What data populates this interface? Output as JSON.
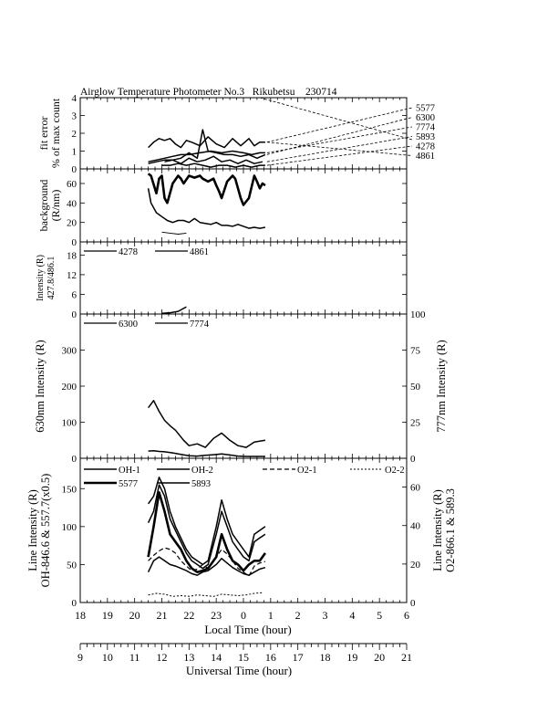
{
  "page": {
    "title": "Airglow Temperature Photometer No.3   Rikubetsu    230714"
  },
  "colors": {
    "ink": "#000000",
    "background": "#ffffff"
  },
  "chart_data": [
    {
      "id": "fit_error",
      "type": "line",
      "ylabel_lines": [
        "fit error",
        "% of max count"
      ],
      "ylim": [
        0,
        4
      ],
      "yticks": [
        0,
        1,
        2,
        3,
        4
      ],
      "xlim": [
        9,
        21
      ],
      "legend_right": [
        "5577",
        "6300",
        "7774",
        "5893",
        "4278",
        "4861"
      ],
      "series": [
        {
          "name": "5577",
          "style": "solid",
          "x": [
            11.5,
            11.7,
            11.9,
            12.1,
            12.3,
            12.5,
            12.7,
            12.9,
            13.1,
            13.4,
            13.7,
            14.0,
            14.3,
            14.6,
            14.9,
            15.2,
            15.4,
            15.6,
            15.8
          ],
          "y": [
            1.2,
            1.5,
            1.7,
            1.6,
            1.7,
            1.4,
            1.2,
            1.6,
            1.5,
            1.3,
            1.8,
            1.4,
            1.2,
            1.7,
            1.3,
            1.7,
            1.3,
            1.5,
            1.5
          ]
        },
        {
          "name": "6300",
          "style": "solid",
          "x": [
            11.5,
            11.8,
            12.1,
            12.4,
            12.7,
            13.0,
            13.3,
            13.5,
            13.7,
            14.0,
            14.3,
            14.6,
            14.9,
            15.2,
            15.5,
            15.8
          ],
          "y": [
            0.3,
            0.4,
            0.5,
            0.5,
            0.6,
            0.9,
            0.6,
            2.2,
            1.0,
            0.9,
            0.8,
            0.8,
            0.7,
            0.8,
            0.6,
            0.8
          ]
        },
        {
          "name": "7774",
          "style": "solid",
          "x": [
            11.5,
            11.8,
            12.1,
            12.4,
            12.7,
            13.0,
            13.4,
            13.8,
            14.2,
            14.6,
            15.0,
            15.3,
            15.6,
            15.8
          ],
          "y": [
            0.4,
            0.5,
            0.6,
            0.7,
            0.8,
            0.8,
            0.9,
            1.0,
            0.9,
            1.0,
            0.9,
            0.8,
            0.9,
            0.9
          ]
        },
        {
          "name": "5893",
          "style": "solid",
          "x": [
            12.1,
            12.4,
            12.7,
            13.0,
            13.3,
            13.6,
            13.9,
            14.2,
            14.5,
            14.8,
            15.1,
            15.4,
            15.7
          ],
          "y": [
            0.4,
            0.5,
            0.3,
            0.6,
            0.4,
            0.5,
            0.7,
            0.4,
            0.5,
            0.3,
            0.5,
            0.3,
            0.4
          ]
        },
        {
          "name": "4278",
          "style": "solid",
          "x": [
            12.0,
            12.3,
            12.6,
            12.9,
            13.2,
            13.5,
            13.8,
            14.1,
            14.4,
            14.7,
            15.0,
            15.3,
            15.6,
            15.8
          ],
          "y": [
            0.2,
            0.2,
            0.3,
            0.2,
            0.3,
            0.2,
            0.1,
            0.2,
            0.2,
            0.1,
            0.2,
            0.1,
            0.2,
            0.2
          ]
        }
      ]
    },
    {
      "id": "background",
      "type": "line",
      "ylabel_lines": [
        "background",
        "(R/nm)"
      ],
      "ylim": [
        0,
        75
      ],
      "yticks": [
        0,
        20,
        40,
        60
      ],
      "xlim": [
        9,
        21
      ],
      "series": [
        {
          "name": "upper",
          "style": "solid-bold",
          "x": [
            11.5,
            11.6,
            11.8,
            11.9,
            12.0,
            12.1,
            12.2,
            12.4,
            12.6,
            12.7,
            12.8,
            13.0,
            13.2,
            13.4,
            13.5,
            13.7,
            13.9,
            14.0,
            14.1,
            14.2,
            14.4,
            14.6,
            14.7,
            14.8,
            14.9,
            15.0,
            15.2,
            15.4,
            15.5,
            15.6,
            15.7,
            15.8
          ],
          "y": [
            70,
            68,
            50,
            65,
            68,
            45,
            40,
            60,
            68,
            65,
            60,
            68,
            66,
            68,
            65,
            62,
            65,
            58,
            52,
            45,
            62,
            68,
            65,
            55,
            45,
            38,
            45,
            68,
            62,
            55,
            60,
            58
          ]
        },
        {
          "name": "lower",
          "style": "solid",
          "x": [
            11.5,
            11.6,
            11.8,
            12.0,
            12.2,
            12.4,
            12.6,
            12.8,
            13.0,
            13.2,
            13.4,
            13.6,
            13.8,
            14.0,
            14.2,
            14.4,
            14.6,
            14.8,
            15.0,
            15.2,
            15.4,
            15.6,
            15.8
          ],
          "y": [
            55,
            40,
            30,
            26,
            22,
            20,
            22,
            22,
            20,
            24,
            20,
            19,
            18,
            20,
            17,
            17,
            16,
            18,
            16,
            14,
            15,
            14,
            15
          ]
        },
        {
          "name": "bottom",
          "style": "solid-thin",
          "x": [
            12.0,
            12.3,
            12.6,
            12.9
          ],
          "y": [
            10,
            9,
            8,
            9
          ]
        }
      ]
    },
    {
      "id": "intensity_4278_4861",
      "type": "line",
      "ylabel_lines": [
        "Intensity (R)",
        "427.8/486.1"
      ],
      "ylim": [
        0,
        22
      ],
      "yticks": [
        0,
        6,
        12,
        18
      ],
      "xlim": [
        9,
        21
      ],
      "legend": [
        "4278",
        "4861"
      ],
      "series": [
        {
          "name": "4278",
          "style": "solid",
          "x": [
            12.0,
            12.3,
            12.6,
            12.9
          ],
          "y": [
            0.2,
            0.4,
            0.8,
            2.2
          ]
        }
      ]
    },
    {
      "id": "intensity_630_777",
      "type": "line",
      "ylabel_left": "630nm Intensity (R)",
      "ylabel_right": "777nm Intensity (R)",
      "ylim": [
        0,
        400
      ],
      "yticks": [
        0,
        100,
        200,
        300
      ],
      "ylim_right": [
        0,
        100
      ],
      "yticks_right": [
        0,
        25,
        50,
        75,
        100
      ],
      "xlim": [
        9,
        21
      ],
      "legend": [
        "6300",
        "7774"
      ],
      "series": [
        {
          "name": "6300",
          "style": "solid",
          "x": [
            11.5,
            11.7,
            11.9,
            12.1,
            12.3,
            12.5,
            12.8,
            13.0,
            13.3,
            13.6,
            13.9,
            14.2,
            14.5,
            14.8,
            15.1,
            15.4,
            15.8
          ],
          "y": [
            140,
            160,
            130,
            105,
            90,
            78,
            50,
            35,
            40,
            30,
            55,
            70,
            50,
            35,
            30,
            45,
            50
          ]
        },
        {
          "name": "7774",
          "style": "solid",
          "x": [
            11.5,
            11.7,
            11.9,
            12.1,
            12.4,
            12.7,
            13.0,
            13.3,
            13.6,
            13.9,
            14.2,
            14.5,
            14.8,
            15.1,
            15.4,
            15.8
          ],
          "y": [
            20,
            21,
            19,
            18,
            15,
            11,
            7,
            6,
            8,
            10,
            12,
            9,
            6,
            5,
            5,
            5
          ]
        }
      ]
    },
    {
      "id": "line_intensity",
      "type": "line",
      "ylabel_left_lines": [
        "Line Intensity (R)",
        "OH-846.6 & 557.7(x0.5)"
      ],
      "ylabel_right_lines": [
        "Line Intensity (R)",
        "O2-866.1 & 589.3"
      ],
      "ylim": [
        0,
        190
      ],
      "yticks": [
        0,
        50,
        100,
        150
      ],
      "ylim_right": [
        0,
        75
      ],
      "yticks_right": [
        0,
        20,
        40,
        60
      ],
      "xlim": [
        9,
        21
      ],
      "legend_row1": [
        "OH-1",
        "OH-2",
        "O2-1",
        "O2-2"
      ],
      "legend_row2": [
        "5577",
        "5893"
      ],
      "series": [
        {
          "name": "OH-1",
          "style": "solid",
          "x": [
            11.5,
            11.7,
            11.9,
            12.1,
            12.3,
            12.5,
            12.7,
            12.9,
            13.1,
            13.3,
            13.5,
            13.7,
            14.0,
            14.2,
            14.4,
            14.6,
            14.8,
            15.0,
            15.2,
            15.4,
            15.6,
            15.8
          ],
          "y": [
            130,
            140,
            165,
            150,
            120,
            100,
            85,
            70,
            60,
            55,
            50,
            55,
            100,
            135,
            110,
            90,
            80,
            70,
            60,
            90,
            95,
            100
          ]
        },
        {
          "name": "OH-2",
          "style": "solid",
          "x": [
            11.5,
            11.7,
            11.9,
            12.1,
            12.3,
            12.5,
            12.7,
            12.9,
            13.1,
            13.3,
            13.5,
            13.7,
            14.0,
            14.2,
            14.4,
            14.6,
            14.8,
            15.0,
            15.2,
            15.4,
            15.6,
            15.8
          ],
          "y": [
            105,
            120,
            155,
            140,
            110,
            95,
            80,
            65,
            55,
            50,
            45,
            50,
            90,
            120,
            100,
            80,
            70,
            60,
            55,
            80,
            85,
            90
          ]
        },
        {
          "name": "O2-1",
          "style": "dashed",
          "x": [
            11.5,
            11.7,
            11.9,
            12.1,
            12.3,
            12.5,
            12.7,
            12.9,
            13.1,
            13.3,
            13.5,
            13.7,
            14.0,
            14.2,
            14.4,
            14.6,
            14.8,
            15.0,
            15.2,
            15.4,
            15.6,
            15.8
          ],
          "y": [
            55,
            62,
            68,
            72,
            70,
            65,
            55,
            48,
            42,
            44,
            50,
            45,
            60,
            70,
            64,
            55,
            45,
            40,
            35,
            48,
            52,
            54
          ]
        },
        {
          "name": "O2-2",
          "style": "dotted",
          "x": [
            11.5,
            11.8,
            12.1,
            12.4,
            12.7,
            13.0,
            13.3,
            13.6,
            13.9,
            14.2,
            14.5,
            14.8,
            15.1,
            15.4,
            15.7
          ],
          "y": [
            10,
            12,
            11,
            8,
            9,
            8,
            10,
            9,
            8,
            11,
            10,
            9,
            10,
            12,
            13
          ]
        },
        {
          "name": "5577",
          "style": "solid-bold",
          "x": [
            11.5,
            11.7,
            11.9,
            12.1,
            12.3,
            12.5,
            12.7,
            12.9,
            13.1,
            13.3,
            13.5,
            13.7,
            14.0,
            14.2,
            14.4,
            14.6,
            14.8,
            15.0,
            15.2,
            15.4,
            15.6,
            15.8
          ],
          "y": [
            60,
            100,
            145,
            120,
            90,
            80,
            70,
            55,
            45,
            40,
            42,
            45,
            60,
            90,
            70,
            55,
            50,
            42,
            50,
            55,
            55,
            65
          ]
        },
        {
          "name": "5893",
          "style": "solid",
          "x": [
            11.5,
            11.7,
            11.9,
            12.1,
            12.3,
            12.5,
            12.7,
            12.9,
            13.1,
            13.3,
            13.5,
            13.7,
            14.0,
            14.2,
            14.4,
            14.6,
            14.8,
            15.0,
            15.2,
            15.4,
            15.6,
            15.8
          ],
          "y": [
            40,
            55,
            60,
            55,
            50,
            48,
            45,
            42,
            38,
            36,
            40,
            42,
            50,
            58,
            52,
            46,
            42,
            38,
            36,
            40,
            44,
            46
          ]
        }
      ]
    }
  ],
  "axes": {
    "local_time": {
      "label": "Local Time (hour)",
      "ticks": [
        "18",
        "19",
        "20",
        "21",
        "22",
        "23",
        "0",
        "1",
        "2",
        "3",
        "4",
        "5",
        "6"
      ]
    },
    "universal_time": {
      "label": "Universal Time (hour)",
      "ticks": [
        "9",
        "10",
        "11",
        "12",
        "13",
        "14",
        "15",
        "16",
        "17",
        "18",
        "19",
        "20",
        "21"
      ]
    }
  }
}
